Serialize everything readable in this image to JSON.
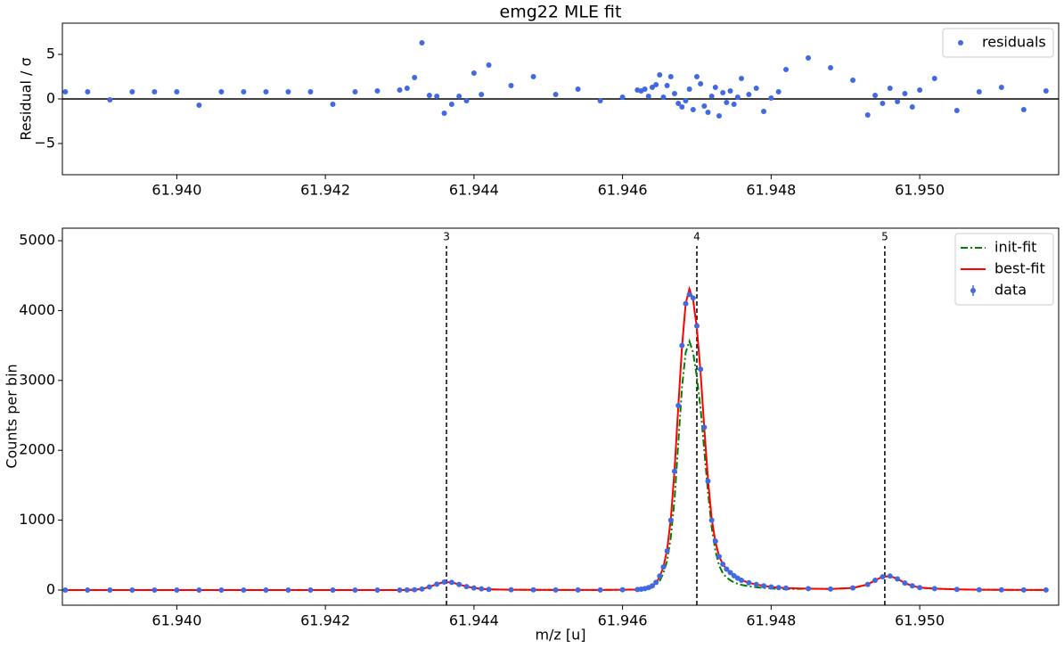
{
  "chart_data": [
    {
      "type": "scatter",
      "title": "emg22 MLE fit",
      "ylabel": "Residual / σ",
      "xlim": [
        61.93846,
        61.95187
      ],
      "xticks": [
        {
          "value": 61.94,
          "label": "61.940"
        },
        {
          "value": 61.942,
          "label": "61.942"
        },
        {
          "value": 61.944,
          "label": "61.944"
        },
        {
          "value": 61.946,
          "label": "61.946"
        },
        {
          "value": 61.948,
          "label": "61.948"
        },
        {
          "value": 61.95,
          "label": "61.950"
        }
      ],
      "ylim": [
        -8.5,
        8.5
      ],
      "yticks": [
        {
          "value": -5,
          "label": "−5"
        },
        0,
        5
      ],
      "reference_line": 0,
      "legend": "upper right",
      "x": [
        61.9385,
        61.9388,
        61.9391,
        61.9394,
        61.9397,
        61.94,
        61.9403,
        61.9406,
        61.9409,
        61.9412,
        61.9415,
        61.9418,
        61.9421,
        61.9424,
        61.9427,
        61.943,
        61.9431,
        61.9432,
        61.9433,
        61.9434,
        61.9435,
        61.9436,
        61.9437,
        61.9438,
        61.9439,
        61.944,
        61.9441,
        61.9442,
        61.9445,
        61.9448,
        61.9451,
        61.9454,
        61.9457,
        61.946,
        61.9462,
        61.94625,
        61.9463,
        61.94635,
        61.9464,
        61.94645,
        61.9465,
        61.94655,
        61.9466,
        61.94665,
        61.9467,
        61.94675,
        61.9468,
        61.94685,
        61.9469,
        61.94695,
        61.947,
        61.94705,
        61.9471,
        61.94715,
        61.9472,
        61.94725,
        61.9473,
        61.94735,
        61.9474,
        61.94745,
        61.9475,
        61.94755,
        61.9476,
        61.9477,
        61.9478,
        61.9479,
        61.948,
        61.9481,
        61.9482,
        61.9485,
        61.9488,
        61.9491,
        61.9493,
        61.9494,
        61.9495,
        61.9496,
        61.9497,
        61.9498,
        61.9499,
        61.95,
        61.9502,
        61.9505,
        61.9508,
        61.9511,
        61.9514,
        61.9517
      ],
      "series": [
        {
          "name": "residuals",
          "color": "#4169e1",
          "style": "markers",
          "values": [
            0.8,
            0.8,
            -0.1,
            0.8,
            0.8,
            0.8,
            -0.7,
            0.8,
            0.8,
            0.8,
            0.8,
            0.8,
            -0.6,
            0.8,
            0.9,
            1.0,
            1.2,
            2.4,
            6.3,
            0.4,
            0.3,
            -1.6,
            -0.6,
            0.3,
            -0.2,
            2.9,
            0.5,
            3.8,
            1.5,
            2.5,
            0.5,
            1.1,
            -0.2,
            0.2,
            1.0,
            0.9,
            1.1,
            0.3,
            1.3,
            1.6,
            2.7,
            0.2,
            1.5,
            2.5,
            0.6,
            -0.5,
            -0.9,
            -0.2,
            1.1,
            -1.2,
            2.5,
            1.7,
            -0.8,
            -1.5,
            0.3,
            1.3,
            -1.9,
            0.7,
            -0.4,
            0.9,
            -0.6,
            0.2,
            2.3,
            0.5,
            1.2,
            -1.4,
            0.1,
            0.8,
            3.3,
            4.6,
            3.5,
            2.1,
            -1.8,
            0.4,
            -0.5,
            1.2,
            -0.3,
            0.6,
            -0.9,
            1.0,
            2.3,
            -1.3,
            0.8,
            1.3,
            -1.2,
            0.9
          ]
        }
      ]
    },
    {
      "type": "line",
      "xlabel": "m/z [u]",
      "ylabel": "Counts per bin",
      "xlim": [
        61.93846,
        61.95187
      ],
      "xticks": [
        {
          "value": 61.94,
          "label": "61.940"
        },
        {
          "value": 61.942,
          "label": "61.942"
        },
        {
          "value": 61.944,
          "label": "61.944"
        },
        {
          "value": 61.946,
          "label": "61.946"
        },
        {
          "value": 61.948,
          "label": "61.948"
        },
        {
          "value": 61.95,
          "label": "61.950"
        }
      ],
      "ylim": [
        -217,
        5179
      ],
      "yticks": [
        0,
        1000,
        2000,
        3000,
        4000,
        5000
      ],
      "legend": "upper right",
      "peak_markers": {
        "x": [
          61.94363,
          61.947,
          61.94953
        ],
        "labels": [
          "3",
          "4",
          "5"
        ]
      },
      "x": [
        61.9385,
        61.9388,
        61.9391,
        61.9394,
        61.9397,
        61.94,
        61.9403,
        61.9406,
        61.9409,
        61.9412,
        61.9415,
        61.9418,
        61.9421,
        61.9424,
        61.9427,
        61.943,
        61.9431,
        61.9432,
        61.9433,
        61.9434,
        61.9435,
        61.9436,
        61.9437,
        61.9438,
        61.9439,
        61.944,
        61.9441,
        61.9442,
        61.9445,
        61.9448,
        61.9451,
        61.9454,
        61.9457,
        61.946,
        61.9462,
        61.94625,
        61.9463,
        61.94635,
        61.9464,
        61.94645,
        61.9465,
        61.94655,
        61.9466,
        61.94665,
        61.9467,
        61.94675,
        61.9468,
        61.94685,
        61.9469,
        61.94695,
        61.947,
        61.94705,
        61.9471,
        61.94715,
        61.9472,
        61.94725,
        61.9473,
        61.94735,
        61.9474,
        61.94745,
        61.9475,
        61.94755,
        61.9476,
        61.9477,
        61.9478,
        61.9479,
        61.948,
        61.9481,
        61.9482,
        61.9485,
        61.9488,
        61.9491,
        61.9493,
        61.9494,
        61.9495,
        61.9496,
        61.9497,
        61.9498,
        61.9499,
        61.95,
        61.9502,
        61.9505,
        61.9508,
        61.9511,
        61.9514,
        61.9517
      ],
      "series": [
        {
          "name": "init-fit",
          "color": "#008000",
          "style": "dashdot",
          "values": [
            0,
            0,
            0,
            0,
            0,
            0,
            0,
            0,
            0,
            0,
            0,
            0,
            0,
            0,
            0,
            0,
            2,
            5,
            15,
            45,
            85,
            115,
            110,
            80,
            50,
            30,
            18,
            10,
            5,
            3,
            2,
            1,
            2,
            4,
            5,
            8,
            12,
            20,
            35,
            70,
            130,
            240,
            420,
            760,
            1300,
            2100,
            2900,
            3400,
            3560,
            3400,
            3050,
            2600,
            2000,
            1400,
            900,
            560,
            350,
            240,
            180,
            140,
            110,
            90,
            75,
            55,
            40,
            30,
            22,
            17,
            13,
            20,
            15,
            30,
            80,
            140,
            190,
            200,
            160,
            100,
            60,
            35,
            20,
            10,
            5,
            3,
            2,
            1
          ]
        },
        {
          "name": "best-fit",
          "color": "#ff0000",
          "style": "solid",
          "values": [
            0,
            0,
            0,
            0,
            0,
            0,
            0,
            0,
            0,
            0,
            0,
            0,
            0,
            0,
            0,
            0,
            2,
            5,
            15,
            45,
            85,
            115,
            110,
            80,
            50,
            30,
            18,
            10,
            5,
            3,
            2,
            1,
            2,
            4,
            8,
            12,
            18,
            30,
            55,
            100,
            190,
            330,
            580,
            1020,
            1720,
            2620,
            3480,
            4100,
            4310,
            4150,
            3750,
            3120,
            2320,
            1580,
            1020,
            690,
            480,
            370,
            300,
            245,
            205,
            170,
            140,
            105,
            80,
            60,
            45,
            35,
            28,
            20,
            15,
            30,
            80,
            140,
            190,
            200,
            160,
            100,
            60,
            35,
            20,
            10,
            5,
            3,
            2,
            1
          ]
        },
        {
          "name": "data",
          "color": "#4169e1",
          "style": "errorbar",
          "values": [
            0,
            0,
            0,
            0,
            0,
            0,
            0,
            0,
            0,
            0,
            0,
            0,
            0,
            0,
            0,
            0,
            2,
            5,
            15,
            45,
            85,
            115,
            110,
            80,
            50,
            30,
            18,
            10,
            5,
            3,
            2,
            1,
            2,
            4,
            8,
            12,
            20,
            35,
            60,
            110,
            200,
            330,
            560,
            1000,
            1700,
            2640,
            3500,
            4100,
            4230,
            4180,
            3780,
            3160,
            2330,
            1560,
            1000,
            700,
            480,
            370,
            300,
            250,
            205,
            170,
            140,
            105,
            80,
            60,
            45,
            35,
            28,
            20,
            15,
            30,
            80,
            140,
            190,
            200,
            160,
            100,
            60,
            35,
            20,
            10,
            5,
            3,
            2,
            1
          ]
        }
      ]
    }
  ]
}
